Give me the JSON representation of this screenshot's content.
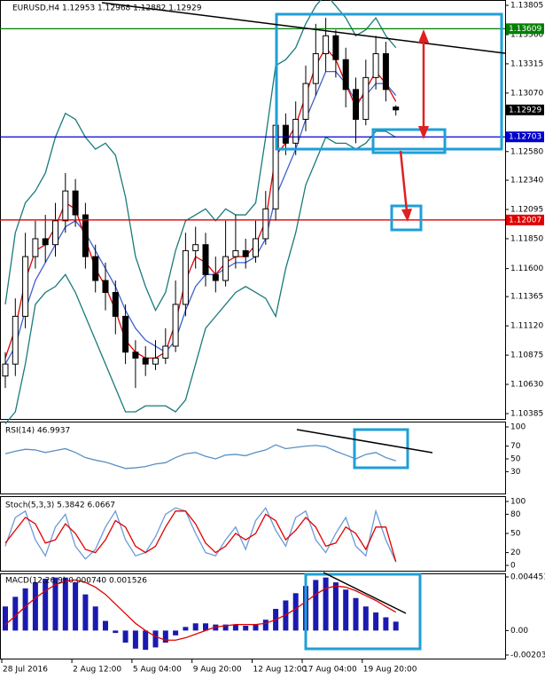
{
  "chart_data": [
    {
      "type": "candlestick",
      "title": "EURUSD,H4  1.12953 1.12968 1.12882 1.12929",
      "categories": [
        "28 Jul 2016",
        null,
        null,
        null,
        null,
        null,
        null,
        "2 Aug 12:00",
        null,
        null,
        null,
        null,
        null,
        "5 Aug 04:00",
        null,
        null,
        null,
        null,
        null,
        "9 Aug 20:00",
        null,
        null,
        null,
        null,
        null,
        "12 Aug 12:00",
        null,
        null,
        null,
        null,
        "17 Aug 04:00",
        null,
        null,
        null,
        null,
        null,
        "19 Aug 20:00",
        null,
        null,
        null
      ],
      "open": [
        1.107,
        1.108,
        1.112,
        1.117,
        1.1185,
        1.118,
        1.12,
        1.1225,
        1.1205,
        1.117,
        1.115,
        1.114,
        1.112,
        1.109,
        1.1085,
        1.108,
        1.1085,
        1.1095,
        1.113,
        1.1175,
        1.118,
        1.1155,
        1.115,
        1.117,
        1.1175,
        1.117,
        1.1185,
        1.121,
        1.128,
        1.1265,
        1.1285,
        1.1315,
        1.134,
        1.1355,
        1.1335,
        1.131,
        1.1285,
        1.132,
        1.134,
        1.12953
      ],
      "high": [
        1.109,
        1.1135,
        1.119,
        1.12,
        1.1205,
        1.1215,
        1.124,
        1.1235,
        1.1215,
        1.118,
        1.1165,
        1.115,
        1.113,
        1.11,
        1.1095,
        1.11,
        1.111,
        1.115,
        1.119,
        1.1195,
        1.119,
        1.117,
        1.12,
        1.1205,
        1.1185,
        1.12,
        1.1225,
        1.13,
        1.129,
        1.13,
        1.133,
        1.1365,
        1.137,
        1.136,
        1.1345,
        1.132,
        1.1335,
        1.1355,
        1.135,
        1.12968
      ],
      "low": [
        1.106,
        1.107,
        1.111,
        1.116,
        1.1165,
        1.117,
        1.119,
        1.1195,
        1.116,
        1.114,
        1.1125,
        1.1105,
        1.108,
        1.106,
        1.107,
        1.1075,
        1.108,
        1.109,
        1.112,
        1.116,
        1.1145,
        1.114,
        1.1145,
        1.116,
        1.116,
        1.1165,
        1.118,
        1.12,
        1.1255,
        1.1255,
        1.1275,
        1.1305,
        1.1325,
        1.132,
        1.1295,
        1.1265,
        1.128,
        1.131,
        1.13,
        1.12882
      ],
      "close": [
        1.108,
        1.112,
        1.117,
        1.1185,
        1.118,
        1.12,
        1.1225,
        1.1205,
        1.117,
        1.115,
        1.114,
        1.112,
        1.109,
        1.1085,
        1.108,
        1.1085,
        1.1095,
        1.113,
        1.1175,
        1.118,
        1.1155,
        1.115,
        1.117,
        1.1175,
        1.117,
        1.1185,
        1.121,
        1.128,
        1.1265,
        1.1285,
        1.1315,
        1.134,
        1.1355,
        1.1335,
        1.131,
        1.1285,
        1.132,
        1.134,
        1.131,
        1.12929
      ],
      "series": [
        {
          "color": "#1a7a7a",
          "values": [
            1.113,
            1.119,
            1.1215,
            1.1225,
            1.124,
            1.127,
            1.129,
            1.1285,
            1.127,
            1.126,
            1.1265,
            1.1255,
            1.122,
            1.117,
            1.1145,
            1.1125,
            1.114,
            1.1175,
            1.12,
            1.1205,
            1.121,
            1.12,
            1.121,
            1.1205,
            1.1205,
            1.1215,
            1.127,
            1.133,
            1.1335,
            1.1345,
            1.1365,
            1.138,
            1.139,
            1.138,
            1.137,
            1.1355,
            1.136,
            1.137,
            1.1355,
            1.1345
          ]
        },
        {
          "color": "#1a7a7a",
          "values": [
            1.103,
            1.104,
            1.108,
            1.113,
            1.114,
            1.1145,
            1.1155,
            1.114,
            1.112,
            1.11,
            1.108,
            1.106,
            1.104,
            1.104,
            1.1045,
            1.1045,
            1.1045,
            1.104,
            1.105,
            1.108,
            1.111,
            1.112,
            1.113,
            1.114,
            1.1145,
            1.114,
            1.1135,
            1.112,
            1.116,
            1.119,
            1.123,
            1.125,
            1.127,
            1.1265,
            1.1265,
            1.126,
            1.1265,
            1.1275,
            1.1275,
            1.127
          ]
        },
        {
          "color": "#4060d0",
          "values": [
            1.108,
            1.1095,
            1.1125,
            1.115,
            1.1165,
            1.118,
            1.1195,
            1.12,
            1.119,
            1.1175,
            1.116,
            1.1145,
            1.1125,
            1.111,
            1.11,
            1.1095,
            1.109,
            1.11,
            1.1125,
            1.1145,
            1.1155,
            1.1155,
            1.116,
            1.1165,
            1.1165,
            1.117,
            1.1185,
            1.122,
            1.124,
            1.126,
            1.1285,
            1.1305,
            1.1325,
            1.1325,
            1.1315,
            1.13,
            1.1305,
            1.1315,
            1.1315,
            1.1305
          ]
        },
        {
          "color": "#e00000",
          "values": [
            1.1085,
            1.111,
            1.115,
            1.1175,
            1.118,
            1.1195,
            1.1215,
            1.121,
            1.1185,
            1.116,
            1.1145,
            1.1125,
            1.11,
            1.109,
            1.1085,
            1.1085,
            1.109,
            1.1115,
            1.115,
            1.117,
            1.1165,
            1.1155,
            1.1165,
            1.117,
            1.117,
            1.118,
            1.12,
            1.1255,
            1.1265,
            1.128,
            1.1305,
            1.133,
            1.1345,
            1.1335,
            1.1315,
            1.1295,
            1.131,
            1.1325,
            1.1315,
            1.13
          ]
        }
      ],
      "levels": [
        {
          "value": 1.13609,
          "color": "#008000"
        },
        {
          "value": 1.12703,
          "color": "#0000cd"
        },
        {
          "value": 1.12007,
          "color": "#e00000"
        }
      ],
      "last_price": 1.12929,
      "ylim": [
        1.10385,
        1.13805
      ],
      "yticks": [
        1.13805,
        {
          "value": 1.1356,
          "label": "1.13560"
        },
        1.13315,
        {
          "value": 1.1307,
          "label": "1.13070"
        },
        {
          "value": 1.1258,
          "label": "1.12580"
        },
        {
          "value": 1.1234,
          "label": "1.12340"
        },
        1.12095,
        {
          "value": 1.1185,
          "label": "1.11850"
        },
        {
          "value": 1.116,
          "label": "1.11600"
        },
        1.11365,
        {
          "value": 1.1112,
          "label": "1.11120"
        },
        1.10875,
        {
          "value": 1.1063,
          "label": "1.10630"
        },
        1.10385
      ]
    },
    {
      "type": "line",
      "title": "RSI(14) 46.9937",
      "series": [
        {
          "color": "#5b8fc4",
          "values": [
            58,
            62,
            65,
            64,
            60,
            63,
            66,
            60,
            52,
            48,
            45,
            40,
            35,
            36,
            38,
            42,
            44,
            52,
            58,
            60,
            54,
            50,
            56,
            57,
            55,
            60,
            64,
            72,
            66,
            68,
            70,
            71,
            69,
            62,
            56,
            50,
            57,
            60,
            52,
            46.9937
          ]
        }
      ],
      "ylim": [
        0,
        100
      ],
      "yticks": [
        100,
        70,
        50,
        30
      ]
    },
    {
      "type": "line",
      "title": "Stoch(5,3,3) 5.3842 6.0667",
      "series": [
        {
          "color": "#6b9bd8",
          "values": [
            30,
            75,
            85,
            40,
            15,
            60,
            80,
            30,
            10,
            25,
            60,
            85,
            40,
            15,
            20,
            45,
            80,
            90,
            85,
            50,
            20,
            15,
            40,
            60,
            25,
            70,
            90,
            55,
            30,
            75,
            85,
            40,
            20,
            50,
            75,
            30,
            15,
            85,
            40,
            5.3842
          ]
        },
        {
          "color": "#e00000",
          "values": [
            35,
            55,
            75,
            65,
            35,
            40,
            65,
            50,
            25,
            20,
            40,
            70,
            60,
            30,
            20,
            30,
            60,
            85,
            85,
            65,
            35,
            20,
            30,
            50,
            40,
            50,
            80,
            70,
            40,
            55,
            75,
            60,
            30,
            35,
            60,
            50,
            25,
            60,
            60,
            6.0667
          ]
        }
      ],
      "ylim": [
        0,
        100
      ],
      "yticks": [
        100,
        80,
        50,
        20,
        0
      ]
    },
    {
      "type": "bar",
      "title": "MACD(12,26,9) 0.000740 0.001526",
      "color": "#1a1ab0",
      "values": [
        0.002,
        0.0028,
        0.0035,
        0.004,
        0.0043,
        0.0044,
        0.0044,
        0.004,
        0.003,
        0.002,
        0.0008,
        -0.0002,
        -0.001,
        -0.0015,
        -0.0016,
        -0.0014,
        -0.001,
        -0.0004,
        0.0003,
        0.0006,
        0.0006,
        0.0005,
        0.0005,
        0.0005,
        0.0004,
        0.0005,
        0.0009,
        0.0018,
        0.0025,
        0.0031,
        0.0037,
        0.0042,
        0.0044,
        0.004,
        0.0034,
        0.0027,
        0.002,
        0.0015,
        0.0011,
        0.00074
      ],
      "series": [
        {
          "color": "#e00000",
          "values": [
            0.0005,
            0.0012,
            0.002,
            0.0027,
            0.0033,
            0.0038,
            0.0041,
            0.0042,
            0.004,
            0.0036,
            0.003,
            0.0022,
            0.0014,
            0.0006,
            0.0,
            -0.0005,
            -0.0008,
            -0.0008,
            -0.0006,
            -0.0003,
            0.0,
            0.0003,
            0.0004,
            0.0005,
            0.0005,
            0.0005,
            0.0006,
            0.0009,
            0.0013,
            0.0018,
            0.0024,
            0.003,
            0.0035,
            0.0037,
            0.0036,
            0.0033,
            0.0029,
            0.0025,
            0.002,
            0.001526
          ]
        }
      ],
      "ylim": [
        -0.002032,
        0.004451
      ],
      "yticks": [
        0.004451,
        {
          "value": 0,
          "label": "0.00"
        },
        -0.002032
      ]
    }
  ]
}
